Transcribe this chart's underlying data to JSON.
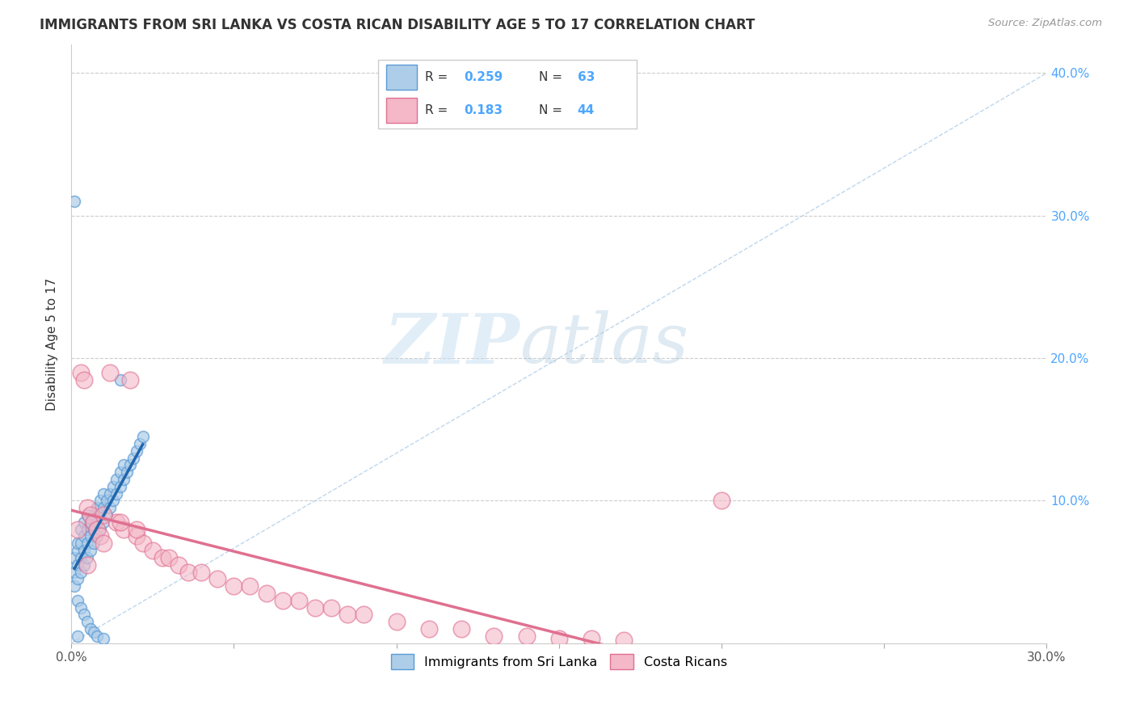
{
  "title": "IMMIGRANTS FROM SRI LANKA VS COSTA RICAN DISABILITY AGE 5 TO 17 CORRELATION CHART",
  "source": "Source: ZipAtlas.com",
  "ylabel": "Disability Age 5 to 17",
  "xlim": [
    0.0,
    0.3
  ],
  "ylim": [
    0.0,
    0.42
  ],
  "xticks": [
    0.0,
    0.05,
    0.1,
    0.15,
    0.2,
    0.25,
    0.3
  ],
  "yticks": [
    0.0,
    0.1,
    0.2,
    0.3,
    0.4
  ],
  "xtick_labels_show": [
    "0.0%",
    "",
    "",
    "",
    "",
    "",
    "30.0%"
  ],
  "ytick_labels": [
    "",
    "10.0%",
    "20.0%",
    "30.0%",
    "40.0%"
  ],
  "legend_r1": "R = 0.259",
  "legend_n1": "N = 63",
  "legend_r2": "R = 0.183",
  "legend_n2": "N = 44",
  "color_blue_fill": "#aecde8",
  "color_blue_edge": "#5b9bd5",
  "color_pink_fill": "#f4b8c8",
  "color_pink_edge": "#e07090",
  "color_pink_line": "#e07090",
  "color_blue_line": "#2166ac",
  "color_diag": "#aecde8",
  "watermark_zip": "ZIP",
  "watermark_atlas": "atlas",
  "blue_scatter_x": [
    0.001,
    0.001,
    0.001,
    0.002,
    0.002,
    0.002,
    0.002,
    0.003,
    0.003,
    0.003,
    0.003,
    0.004,
    0.004,
    0.004,
    0.004,
    0.005,
    0.005,
    0.005,
    0.005,
    0.006,
    0.006,
    0.006,
    0.007,
    0.007,
    0.007,
    0.008,
    0.008,
    0.008,
    0.009,
    0.009,
    0.009,
    0.01,
    0.01,
    0.01,
    0.011,
    0.011,
    0.012,
    0.012,
    0.013,
    0.013,
    0.014,
    0.014,
    0.015,
    0.015,
    0.016,
    0.016,
    0.017,
    0.018,
    0.019,
    0.02,
    0.021,
    0.022,
    0.002,
    0.003,
    0.004,
    0.005,
    0.006,
    0.007,
    0.008,
    0.01,
    0.001,
    0.002,
    0.015
  ],
  "blue_scatter_y": [
    0.04,
    0.05,
    0.06,
    0.045,
    0.055,
    0.065,
    0.07,
    0.05,
    0.06,
    0.07,
    0.08,
    0.055,
    0.065,
    0.075,
    0.085,
    0.06,
    0.07,
    0.08,
    0.09,
    0.065,
    0.075,
    0.085,
    0.07,
    0.08,
    0.09,
    0.075,
    0.085,
    0.095,
    0.08,
    0.09,
    0.1,
    0.085,
    0.095,
    0.105,
    0.09,
    0.1,
    0.095,
    0.105,
    0.1,
    0.11,
    0.105,
    0.115,
    0.11,
    0.12,
    0.115,
    0.125,
    0.12,
    0.125,
    0.13,
    0.135,
    0.14,
    0.145,
    0.03,
    0.025,
    0.02,
    0.015,
    0.01,
    0.008,
    0.005,
    0.003,
    0.31,
    0.005,
    0.185
  ],
  "pink_scatter_x": [
    0.002,
    0.003,
    0.004,
    0.005,
    0.006,
    0.007,
    0.008,
    0.009,
    0.01,
    0.012,
    0.014,
    0.016,
    0.018,
    0.02,
    0.022,
    0.025,
    0.028,
    0.03,
    0.033,
    0.036,
    0.04,
    0.045,
    0.05,
    0.055,
    0.06,
    0.065,
    0.07,
    0.075,
    0.08,
    0.085,
    0.09,
    0.1,
    0.11,
    0.12,
    0.13,
    0.14,
    0.15,
    0.16,
    0.17,
    0.2,
    0.005,
    0.01,
    0.015,
    0.02
  ],
  "pink_scatter_y": [
    0.08,
    0.19,
    0.185,
    0.095,
    0.09,
    0.085,
    0.08,
    0.075,
    0.07,
    0.19,
    0.085,
    0.08,
    0.185,
    0.075,
    0.07,
    0.065,
    0.06,
    0.06,
    0.055,
    0.05,
    0.05,
    0.045,
    0.04,
    0.04,
    0.035,
    0.03,
    0.03,
    0.025,
    0.025,
    0.02,
    0.02,
    0.015,
    0.01,
    0.01,
    0.005,
    0.005,
    0.003,
    0.003,
    0.002,
    0.1,
    0.055,
    0.09,
    0.085,
    0.08
  ]
}
